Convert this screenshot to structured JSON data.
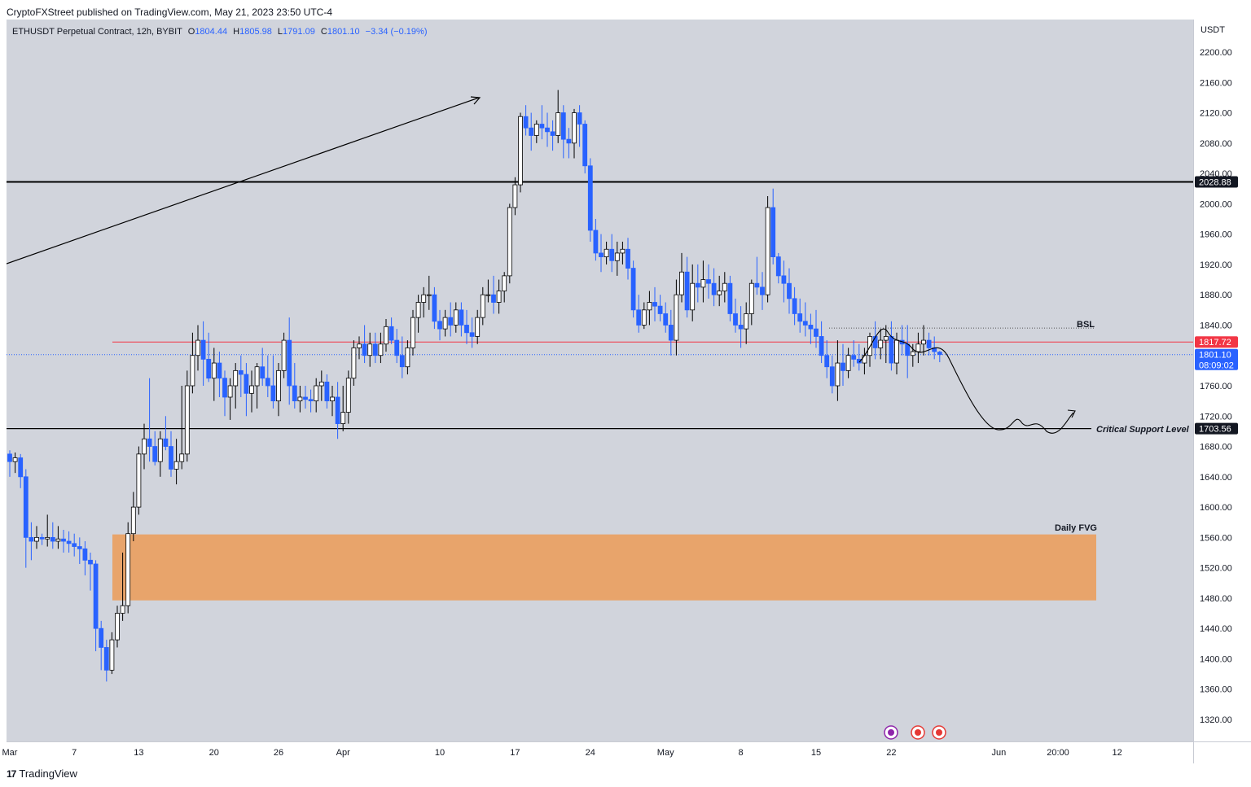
{
  "header": {
    "published": "CryptoFXStreet published on TradingView.com, May 21, 2023 23:50 UTC-4"
  },
  "legend": {
    "symbol": "ETHUSDT Perpetual Contract, 12h, BYBIT",
    "o_label": "O",
    "o": "1804.44",
    "h_label": "H",
    "h": "1805.98",
    "l_label": "L",
    "l": "1791.09",
    "c_label": "C",
    "c": "1801.10",
    "change": "−3.34 (−0.19%)"
  },
  "footer": {
    "brand": "TradingView",
    "logo": "17"
  },
  "colors": {
    "up": "#ffffff",
    "down": "#2962ff",
    "fvg": "#e8a46b",
    "resistance": "#000000",
    "red_line": "#f23645",
    "bsl": "#26786b"
  },
  "chart_data": {
    "type": "candlestick",
    "title": "",
    "currency": "USDT",
    "ylim": [
      1280,
      2240
    ],
    "y_ticks": [
      "2200.00",
      "2160.00",
      "2120.00",
      "2080.00",
      "2040.00",
      "2000.00",
      "1960.00",
      "1920.00",
      "1880.00",
      "1840.00",
      "1800.00",
      "1760.00",
      "1720.00",
      "1680.00",
      "1640.00",
      "1600.00",
      "1560.00",
      "1520.00",
      "1480.00",
      "1440.00",
      "1400.00",
      "1360.00",
      "1320.00"
    ],
    "x_ticks": [
      {
        "label": "Mar",
        "i": 0
      },
      {
        "label": "7",
        "i": 12
      },
      {
        "label": "13",
        "i": 24
      },
      {
        "label": "20",
        "i": 38
      },
      {
        "label": "26",
        "i": 50
      },
      {
        "label": "Apr",
        "i": 62
      },
      {
        "label": "10",
        "i": 80
      },
      {
        "label": "17",
        "i": 94
      },
      {
        "label": "24",
        "i": 108
      },
      {
        "label": "May",
        "i": 122
      },
      {
        "label": "8",
        "i": 136
      },
      {
        "label": "15",
        "i": 150
      },
      {
        "label": "22",
        "i": 164
      },
      {
        "label": "Jun",
        "i": 184
      },
      {
        "label": "20:00",
        "i": 195
      },
      {
        "label": "12",
        "i": 206
      }
    ],
    "candles": [
      [
        1670,
        1675,
        1640,
        1660
      ],
      [
        1660,
        1672,
        1645,
        1665
      ],
      [
        1665,
        1670,
        1625,
        1640
      ],
      [
        1640,
        1650,
        1520,
        1560
      ],
      [
        1560,
        1580,
        1530,
        1555
      ],
      [
        1555,
        1575,
        1545,
        1560
      ],
      [
        1560,
        1565,
        1550,
        1558
      ],
      [
        1558,
        1590,
        1548,
        1560
      ],
      [
        1560,
        1580,
        1545,
        1555
      ],
      [
        1555,
        1575,
        1545,
        1558
      ],
      [
        1558,
        1570,
        1540,
        1555
      ],
      [
        1555,
        1568,
        1540,
        1552
      ],
      [
        1552,
        1565,
        1535,
        1548
      ],
      [
        1548,
        1560,
        1525,
        1545
      ],
      [
        1545,
        1555,
        1510,
        1530
      ],
      [
        1530,
        1540,
        1490,
        1525
      ],
      [
        1525,
        1530,
        1410,
        1440
      ],
      [
        1440,
        1450,
        1385,
        1415
      ],
      [
        1415,
        1425,
        1370,
        1385
      ],
      [
        1385,
        1435,
        1380,
        1425
      ],
      [
        1425,
        1470,
        1415,
        1460
      ],
      [
        1460,
        1540,
        1450,
        1470
      ],
      [
        1470,
        1580,
        1460,
        1565
      ],
      [
        1565,
        1620,
        1555,
        1600
      ],
      [
        1600,
        1680,
        1590,
        1670
      ],
      [
        1670,
        1710,
        1650,
        1690
      ],
      [
        1690,
        1770,
        1660,
        1680
      ],
      [
        1680,
        1700,
        1655,
        1660
      ],
      [
        1660,
        1700,
        1640,
        1690
      ],
      [
        1690,
        1720,
        1675,
        1680
      ],
      [
        1680,
        1700,
        1640,
        1650
      ],
      [
        1650,
        1690,
        1630,
        1660
      ],
      [
        1660,
        1760,
        1650,
        1670
      ],
      [
        1670,
        1780,
        1660,
        1760
      ],
      [
        1760,
        1830,
        1750,
        1800
      ],
      [
        1800,
        1840,
        1780,
        1820
      ],
      [
        1820,
        1845,
        1760,
        1795
      ],
      [
        1795,
        1830,
        1765,
        1770
      ],
      [
        1770,
        1810,
        1740,
        1790
      ],
      [
        1790,
        1805,
        1745,
        1770
      ],
      [
        1770,
        1780,
        1720,
        1745
      ],
      [
        1745,
        1770,
        1715,
        1760
      ],
      [
        1760,
        1790,
        1730,
        1780
      ],
      [
        1780,
        1800,
        1745,
        1775
      ],
      [
        1775,
        1790,
        1720,
        1750
      ],
      [
        1750,
        1780,
        1725,
        1760
      ],
      [
        1760,
        1790,
        1730,
        1785
      ],
      [
        1785,
        1810,
        1760,
        1770
      ],
      [
        1770,
        1800,
        1745,
        1760
      ],
      [
        1760,
        1800,
        1730,
        1740
      ],
      [
        1740,
        1790,
        1720,
        1780
      ],
      [
        1780,
        1830,
        1770,
        1820
      ],
      [
        1820,
        1850,
        1735,
        1760
      ],
      [
        1760,
        1790,
        1730,
        1740
      ],
      [
        1740,
        1760,
        1725,
        1745
      ],
      [
        1745,
        1760,
        1730,
        1742
      ],
      [
        1742,
        1755,
        1725,
        1740
      ],
      [
        1740,
        1770,
        1725,
        1760
      ],
      [
        1760,
        1780,
        1740,
        1765
      ],
      [
        1765,
        1775,
        1730,
        1740
      ],
      [
        1740,
        1760,
        1720,
        1745
      ],
      [
        1745,
        1765,
        1690,
        1710
      ],
      [
        1710,
        1760,
        1700,
        1725
      ],
      [
        1725,
        1780,
        1710,
        1770
      ],
      [
        1770,
        1820,
        1760,
        1810
      ],
      [
        1810,
        1825,
        1795,
        1815
      ],
      [
        1815,
        1840,
        1790,
        1800
      ],
      [
        1800,
        1830,
        1785,
        1815
      ],
      [
        1815,
        1830,
        1790,
        1800
      ],
      [
        1800,
        1830,
        1790,
        1815
      ],
      [
        1815,
        1848,
        1805,
        1838
      ],
      [
        1838,
        1850,
        1815,
        1820
      ],
      [
        1820,
        1835,
        1790,
        1800
      ],
      [
        1800,
        1825,
        1770,
        1785
      ],
      [
        1785,
        1820,
        1775,
        1810
      ],
      [
        1810,
        1860,
        1800,
        1850
      ],
      [
        1850,
        1880,
        1830,
        1870
      ],
      [
        1870,
        1890,
        1850,
        1880
      ],
      [
        1880,
        1905,
        1860,
        1880
      ],
      [
        1880,
        1890,
        1835,
        1845
      ],
      [
        1845,
        1860,
        1820,
        1835
      ],
      [
        1835,
        1860,
        1825,
        1850
      ],
      [
        1850,
        1870,
        1825,
        1840
      ],
      [
        1840,
        1870,
        1830,
        1860
      ],
      [
        1860,
        1870,
        1825,
        1840
      ],
      [
        1840,
        1860,
        1815,
        1830
      ],
      [
        1830,
        1850,
        1810,
        1825
      ],
      [
        1825,
        1860,
        1815,
        1850
      ],
      [
        1850,
        1890,
        1840,
        1880
      ],
      [
        1880,
        1900,
        1870,
        1880
      ],
      [
        1880,
        1905,
        1855,
        1870
      ],
      [
        1870,
        1900,
        1855,
        1885
      ],
      [
        1885,
        1910,
        1870,
        1905
      ],
      [
        1905,
        2000,
        1895,
        1995
      ],
      [
        1995,
        2035,
        1985,
        2025
      ],
      [
        2025,
        2120,
        2015,
        2115
      ],
      [
        2115,
        2130,
        2090,
        2100
      ],
      [
        2100,
        2120,
        2070,
        2090
      ],
      [
        2090,
        2110,
        2080,
        2105
      ],
      [
        2105,
        2130,
        2085,
        2100
      ],
      [
        2100,
        2120,
        2075,
        2095
      ],
      [
        2095,
        2110,
        2070,
        2090
      ],
      [
        2090,
        2150,
        2080,
        2120
      ],
      [
        2120,
        2130,
        2060,
        2085
      ],
      [
        2085,
        2100,
        2060,
        2080
      ],
      [
        2080,
        2125,
        2060,
        2120
      ],
      [
        2120,
        2130,
        2075,
        2105
      ],
      [
        2105,
        2110,
        2040,
        2050
      ],
      [
        2050,
        2060,
        1950,
        1965
      ]
    ],
    "tail": [
      [
        1965,
        1980,
        1925,
        1935
      ],
      [
        1935,
        1960,
        1910,
        1930
      ],
      [
        1930,
        1950,
        1920,
        1940
      ],
      [
        1940,
        1960,
        1910,
        1925
      ],
      [
        1925,
        1950,
        1905,
        1935
      ],
      [
        1935,
        1950,
        1920,
        1940
      ],
      [
        1940,
        1955,
        1900,
        1915
      ],
      [
        1915,
        1925,
        1850,
        1860
      ],
      [
        1860,
        1880,
        1830,
        1840
      ],
      [
        1840,
        1870,
        1835,
        1860
      ],
      [
        1860,
        1885,
        1840,
        1870
      ],
      [
        1870,
        1890,
        1845,
        1865
      ],
      [
        1865,
        1880,
        1845,
        1855
      ],
      [
        1855,
        1870,
        1830,
        1840
      ],
      [
        1840,
        1860,
        1800,
        1820
      ],
      [
        1820,
        1900,
        1800,
        1880
      ],
      [
        1880,
        1935,
        1870,
        1910
      ],
      [
        1910,
        1930,
        1850,
        1860
      ],
      [
        1860,
        1920,
        1845,
        1895
      ],
      [
        1895,
        1920,
        1870,
        1890
      ],
      [
        1890,
        1925,
        1870,
        1900
      ],
      [
        1900,
        1920,
        1875,
        1895
      ],
      [
        1895,
        1915,
        1865,
        1880
      ],
      [
        1880,
        1905,
        1865,
        1885
      ],
      [
        1885,
        1910,
        1870,
        1895
      ],
      [
        1895,
        1905,
        1845,
        1855
      ],
      [
        1855,
        1875,
        1830,
        1840
      ],
      [
        1840,
        1865,
        1810,
        1835
      ],
      [
        1835,
        1870,
        1815,
        1855
      ],
      [
        1855,
        1900,
        1840,
        1895
      ],
      [
        1895,
        1930,
        1880,
        1890
      ],
      [
        1890,
        1910,
        1860,
        1880
      ],
      [
        1880,
        2010,
        1870,
        1995
      ],
      [
        1995,
        2020,
        1920,
        1930
      ],
      [
        1930,
        1935,
        1895,
        1905
      ],
      [
        1905,
        1925,
        1870,
        1895
      ],
      [
        1895,
        1915,
        1855,
        1875
      ],
      [
        1875,
        1890,
        1840,
        1855
      ],
      [
        1855,
        1875,
        1830,
        1845
      ],
      [
        1845,
        1870,
        1825,
        1840
      ],
      [
        1840,
        1855,
        1815,
        1835
      ],
      [
        1835,
        1860,
        1810,
        1825
      ],
      [
        1825,
        1845,
        1790,
        1800
      ],
      [
        1800,
        1820,
        1770,
        1785
      ],
      [
        1785,
        1800,
        1750,
        1760
      ],
      [
        1760,
        1820,
        1740,
        1790
      ],
      [
        1790,
        1815,
        1760,
        1780
      ],
      [
        1780,
        1810,
        1770,
        1800
      ],
      [
        1800,
        1820,
        1785,
        1795
      ],
      [
        1795,
        1815,
        1780,
        1790
      ],
      [
        1790,
        1810,
        1775,
        1800
      ],
      [
        1800,
        1830,
        1785,
        1825
      ],
      [
        1825,
        1845,
        1795,
        1810
      ],
      [
        1810,
        1835,
        1795,
        1820
      ],
      [
        1820,
        1840,
        1790,
        1825
      ],
      [
        1825,
        1845,
        1780,
        1790
      ],
      [
        1790,
        1830,
        1775,
        1820
      ],
      [
        1820,
        1840,
        1800,
        1815
      ],
      [
        1815,
        1840,
        1770,
        1800
      ],
      [
        1800,
        1815,
        1785,
        1805
      ],
      [
        1805,
        1830,
        1790,
        1815
      ],
      [
        1815,
        1840,
        1800,
        1820
      ],
      [
        1820,
        1830,
        1800,
        1810
      ],
      [
        1810,
        1825,
        1795,
        1805
      ],
      [
        1804.44,
        1805.98,
        1791.09,
        1801.1
      ]
    ],
    "levels": {
      "resistance": 2028.88,
      "red_line": 1817.72,
      "last_price": 1801.1,
      "countdown": "08:09:02",
      "support": 1703.56,
      "bsl": 1836
    },
    "annotations": {
      "bsl_label": "BSL",
      "support_label": "Critical Support Level",
      "fvg_label": "Daily FVG",
      "fvg_range": [
        1477,
        1564
      ]
    },
    "price_labels": {
      "resistance": "2028.88",
      "red_line": "1817.72",
      "last_price": "1801.10",
      "support": "1703.56"
    }
  }
}
